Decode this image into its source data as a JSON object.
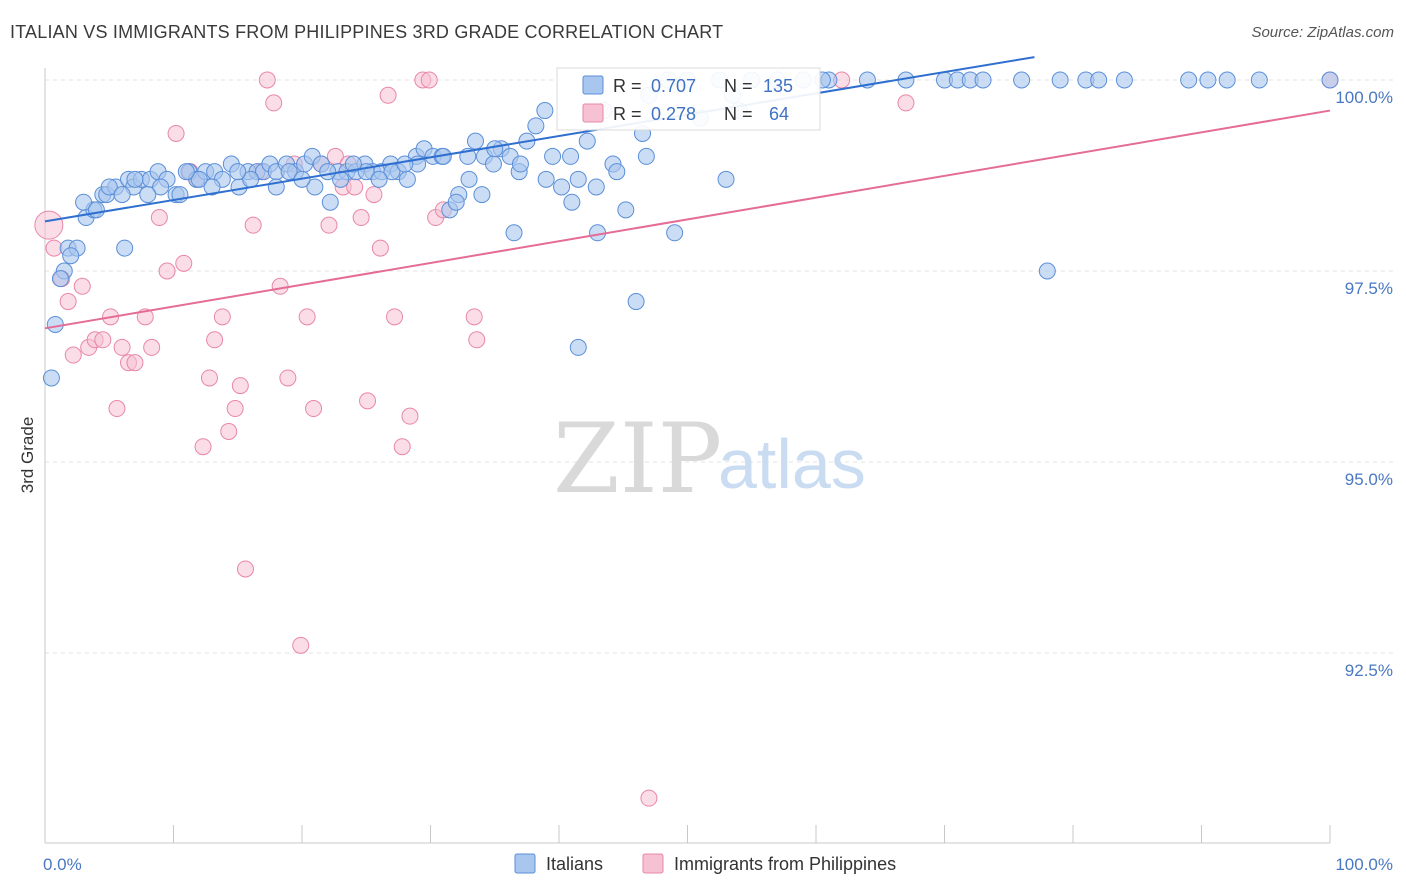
{
  "header": {
    "title": "ITALIAN VS IMMIGRANTS FROM PHILIPPINES 3RD GRADE CORRELATION CHART",
    "source": "Source: ZipAtlas.com"
  },
  "watermark": {
    "zip": "ZIP",
    "atlas": "atlas"
  },
  "stats": {
    "italians": {
      "r_label": "R = ",
      "r_value": "0.707",
      "n_label": "N = ",
      "n_value": "135"
    },
    "philippines": {
      "r_label": "R = ",
      "r_value": "0.278",
      "n_label": "N = ",
      "n_value": "64"
    }
  },
  "colors": {
    "italians_fill": "#a9c6ee",
    "italians_stroke": "#5b8fd8",
    "italians_line": "#2f6fd0",
    "philippines_fill": "#f6c1d3",
    "philippines_stroke": "#e887a8",
    "philippines_line": "#e46c96",
    "grid": "#e3e3e3",
    "tick_text": "#4a78c2"
  },
  "chart_data": {
    "type": "scatter",
    "title": "ITALIAN VS IMMIGRANTS FROM PHILIPPINES 3RD GRADE CORRELATION CHART",
    "xlabel": "",
    "ylabel": "3rd Grade",
    "xlim": [
      0,
      100
    ],
    "ylim": [
      90.2,
      100.35
    ],
    "x_tick_labels": [
      "0.0%",
      "100.0%"
    ],
    "y_ticks": [
      92.5,
      95.0,
      97.5,
      100.0
    ],
    "y_tick_labels": [
      "92.5%",
      "95.0%",
      "97.5%",
      "100.0%"
    ],
    "grid": true,
    "legend_position": "bottom-center",
    "series": [
      {
        "name": "Italians",
        "color": "#5b8fd8",
        "r": 0.707,
        "n": 135,
        "trend": {
          "x": [
            0,
            77
          ],
          "y": [
            98.15,
            100.3
          ]
        },
        "points": [
          [
            0.5,
            96.1
          ],
          [
            0.8,
            96.8
          ],
          [
            1.5,
            97.5
          ],
          [
            1.8,
            97.8
          ],
          [
            2.5,
            97.8
          ],
          [
            3.2,
            98.2
          ],
          [
            3.8,
            98.3
          ],
          [
            4.5,
            98.5
          ],
          [
            4.8,
            98.5
          ],
          [
            5.5,
            98.6
          ],
          [
            6.2,
            97.8
          ],
          [
            6.5,
            98.7
          ],
          [
            6.9,
            98.6
          ],
          [
            7.5,
            98.7
          ],
          [
            8.2,
            98.7
          ],
          [
            8.8,
            98.8
          ],
          [
            9.5,
            98.7
          ],
          [
            10.2,
            98.5
          ],
          [
            10.5,
            98.5
          ],
          [
            11.2,
            98.8
          ],
          [
            11.8,
            98.7
          ],
          [
            12.5,
            98.8
          ],
          [
            13.2,
            98.8
          ],
          [
            13.8,
            98.7
          ],
          [
            14.5,
            98.9
          ],
          [
            15.1,
            98.6
          ],
          [
            15.8,
            98.8
          ],
          [
            16.5,
            98.8
          ],
          [
            17.0,
            98.8
          ],
          [
            17.5,
            98.9
          ],
          [
            18.0,
            98.8
          ],
          [
            18.8,
            98.9
          ],
          [
            19.5,
            98.8
          ],
          [
            20.2,
            98.9
          ],
          [
            20.8,
            99.0
          ],
          [
            21.5,
            98.9
          ],
          [
            22.2,
            98.4
          ],
          [
            22.8,
            98.8
          ],
          [
            23.5,
            98.8
          ],
          [
            24.2,
            98.8
          ],
          [
            24.9,
            98.9
          ],
          [
            25.5,
            98.8
          ],
          [
            26.2,
            98.8
          ],
          [
            26.9,
            98.9
          ],
          [
            27.5,
            98.8
          ],
          [
            28.2,
            98.7
          ],
          [
            28.9,
            99.0
          ],
          [
            29.5,
            99.1
          ],
          [
            30.2,
            99.0
          ],
          [
            30.9,
            99.0
          ],
          [
            31.5,
            98.3
          ],
          [
            32.2,
            98.5
          ],
          [
            32.9,
            99.0
          ],
          [
            33.5,
            99.2
          ],
          [
            34.2,
            99.0
          ],
          [
            34.9,
            98.9
          ],
          [
            35.5,
            99.1
          ],
          [
            36.2,
            99.0
          ],
          [
            36.9,
            98.8
          ],
          [
            37.5,
            99.2
          ],
          [
            38.2,
            99.4
          ],
          [
            38.9,
            99.6
          ],
          [
            39.5,
            99.0
          ],
          [
            40.2,
            98.6
          ],
          [
            40.9,
            99.0
          ],
          [
            41.5,
            98.7
          ],
          [
            42.2,
            99.2
          ],
          [
            42.9,
            98.6
          ],
          [
            43.5,
            99.6
          ],
          [
            44.2,
            98.9
          ],
          [
            45.2,
            98.3
          ],
          [
            46.5,
            99.3
          ],
          [
            47.0,
            99.8
          ],
          [
            48.5,
            100.0
          ],
          [
            50.0,
            100.0
          ],
          [
            51.0,
            99.5
          ],
          [
            52.5,
            100.0
          ],
          [
            53.5,
            99.8
          ],
          [
            54.0,
            99.6
          ],
          [
            55.0,
            100.0
          ],
          [
            57.0,
            100.0
          ],
          [
            59.0,
            100.0
          ],
          [
            61.0,
            100.0
          ],
          [
            64.0,
            100.0
          ],
          [
            67.0,
            100.0
          ],
          [
            70.0,
            100.0
          ],
          [
            71.0,
            100.0
          ],
          [
            72.0,
            100.0
          ],
          [
            73.0,
            100.0
          ],
          [
            76.0,
            100.0
          ],
          [
            79.0,
            100.0
          ],
          [
            81.0,
            100.0
          ],
          [
            82.0,
            100.0
          ],
          [
            84.0,
            100.0
          ],
          [
            89.0,
            100.0
          ],
          [
            90.5,
            100.0
          ],
          [
            92.0,
            100.0
          ],
          [
            94.5,
            100.0
          ],
          [
            100.0,
            100.0
          ],
          [
            3.0,
            98.4
          ],
          [
            5.0,
            98.6
          ],
          [
            9.0,
            98.6
          ],
          [
            12.0,
            98.7
          ],
          [
            16.0,
            98.7
          ],
          [
            19.0,
            98.8
          ],
          [
            21.0,
            98.6
          ],
          [
            23.0,
            98.7
          ],
          [
            25.0,
            98.8
          ],
          [
            27.0,
            98.8
          ],
          [
            29.0,
            98.9
          ],
          [
            31.0,
            99.0
          ],
          [
            33.0,
            98.7
          ],
          [
            34.0,
            98.5
          ],
          [
            36.5,
            98.0
          ],
          [
            39.0,
            98.7
          ],
          [
            41.0,
            98.4
          ],
          [
            43.0,
            98.0
          ],
          [
            46.0,
            97.1
          ],
          [
            49.0,
            98.0
          ],
          [
            41.5,
            96.5
          ],
          [
            78.0,
            97.5
          ],
          [
            53.0,
            98.7
          ],
          [
            46.8,
            99.0
          ],
          [
            44.5,
            98.8
          ],
          [
            37.0,
            98.9
          ],
          [
            35.0,
            99.1
          ],
          [
            32.0,
            98.4
          ],
          [
            28.0,
            98.9
          ],
          [
            26.0,
            98.7
          ],
          [
            24.0,
            98.9
          ],
          [
            22.0,
            98.8
          ],
          [
            20.0,
            98.7
          ],
          [
            18.0,
            98.6
          ],
          [
            15.0,
            98.8
          ],
          [
            13.0,
            98.6
          ],
          [
            11.0,
            98.8
          ],
          [
            8.0,
            98.5
          ],
          [
            7.0,
            98.7
          ],
          [
            6.0,
            98.5
          ],
          [
            4.0,
            98.3
          ],
          [
            2.0,
            97.7
          ],
          [
            1.2,
            97.4
          ],
          [
            60.5,
            100.0
          ]
        ]
      },
      {
        "name": "Immigrants from Philippines",
        "color": "#e887a8",
        "r": 0.278,
        "n": 64,
        "trend": {
          "x": [
            0,
            100
          ],
          "y": [
            96.75,
            99.6
          ]
        },
        "points": [
          [
            0.3,
            98.1
          ],
          [
            0.7,
            97.8
          ],
          [
            1.3,
            97.4
          ],
          [
            1.8,
            97.1
          ],
          [
            2.2,
            96.4
          ],
          [
            2.9,
            97.3
          ],
          [
            3.4,
            96.5
          ],
          [
            3.9,
            96.6
          ],
          [
            4.5,
            96.6
          ],
          [
            5.1,
            96.9
          ],
          [
            5.6,
            95.7
          ],
          [
            6.0,
            96.5
          ],
          [
            6.5,
            96.3
          ],
          [
            7.0,
            96.3
          ],
          [
            7.8,
            96.9
          ],
          [
            8.3,
            96.5
          ],
          [
            8.9,
            98.2
          ],
          [
            9.5,
            97.5
          ],
          [
            10.2,
            99.3
          ],
          [
            10.8,
            97.6
          ],
          [
            11.3,
            98.8
          ],
          [
            11.8,
            98.7
          ],
          [
            12.3,
            95.2
          ],
          [
            12.8,
            96.1
          ],
          [
            13.2,
            96.6
          ],
          [
            13.8,
            96.9
          ],
          [
            14.3,
            95.4
          ],
          [
            14.8,
            95.7
          ],
          [
            15.2,
            96.0
          ],
          [
            15.6,
            93.6
          ],
          [
            16.2,
            98.1
          ],
          [
            16.8,
            98.8
          ],
          [
            17.3,
            100.0
          ],
          [
            17.8,
            99.7
          ],
          [
            18.3,
            97.3
          ],
          [
            18.9,
            96.1
          ],
          [
            19.4,
            98.9
          ],
          [
            19.9,
            92.6
          ],
          [
            20.4,
            96.9
          ],
          [
            20.9,
            95.7
          ],
          [
            21.5,
            98.9
          ],
          [
            22.1,
            98.1
          ],
          [
            22.6,
            99.0
          ],
          [
            23.2,
            98.6
          ],
          [
            23.6,
            98.9
          ],
          [
            24.1,
            98.6
          ],
          [
            24.6,
            98.2
          ],
          [
            25.1,
            95.8
          ],
          [
            25.6,
            98.5
          ],
          [
            26.1,
            97.8
          ],
          [
            26.7,
            99.8
          ],
          [
            27.2,
            96.9
          ],
          [
            27.8,
            95.2
          ],
          [
            28.4,
            95.6
          ],
          [
            29.4,
            100.0
          ],
          [
            29.9,
            100.0
          ],
          [
            30.4,
            98.2
          ],
          [
            31.0,
            98.3
          ],
          [
            33.4,
            96.9
          ],
          [
            33.6,
            96.6
          ],
          [
            47.0,
            90.6
          ],
          [
            62.0,
            100.0
          ],
          [
            67.0,
            99.7
          ],
          [
            100.0,
            100.0
          ]
        ]
      }
    ]
  },
  "legend": {
    "items": [
      "Italians",
      "Immigrants from Philippines"
    ]
  }
}
